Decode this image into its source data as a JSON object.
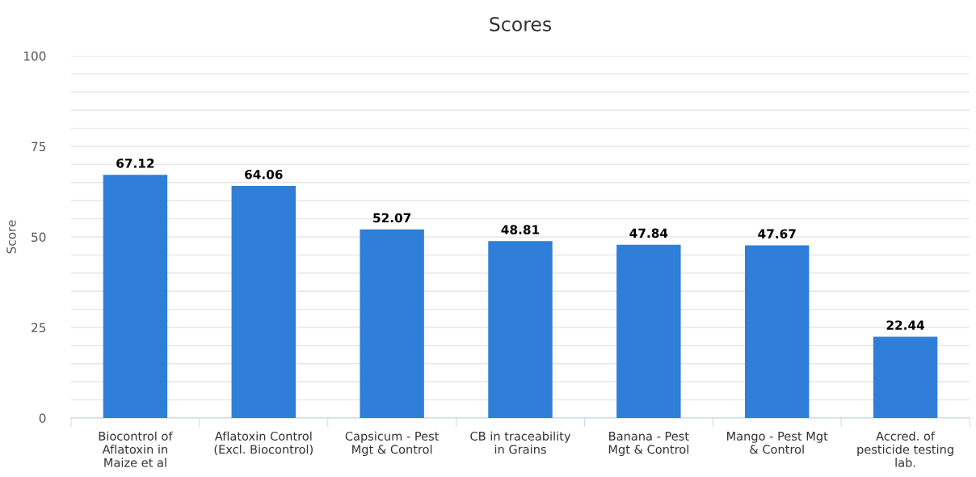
{
  "chart_data": {
    "type": "bar",
    "title": "Scores",
    "ylabel": "Score",
    "categories": [
      "Biocontrol of\nAflatoxin in\nMaize et al",
      "Aflatoxin Control\n(Excl. Biocontrol)",
      "Capsicum - Pest\nMgt & Control",
      "CB in traceability\nin Grains",
      "Banana - Pest\nMgt & Control",
      "Mango - Pest Mgt\n& Control",
      "Accred. of\npesticide testing\nlab."
    ],
    "values": [
      67.12,
      64.06,
      52.07,
      48.81,
      47.84,
      47.67,
      22.44
    ],
    "color": "#2f7ed8",
    "data_labels": true,
    "grid": "y",
    "ylim": [
      0,
      100
    ],
    "yticks": [
      0,
      {
        "value": 5,
        "label": null
      },
      {
        "value": 10,
        "label": null
      },
      {
        "value": 15,
        "label": null
      },
      {
        "value": 20,
        "label": null
      },
      25,
      {
        "value": 30,
        "label": null
      },
      {
        "value": 35,
        "label": null
      },
      {
        "value": 40,
        "label": null
      },
      {
        "value": 45,
        "label": null
      },
      50,
      {
        "value": 55,
        "label": null
      },
      {
        "value": 60,
        "label": null
      },
      {
        "value": 65,
        "label": null
      },
      {
        "value": 70,
        "label": null
      },
      75,
      {
        "value": 80,
        "label": null
      },
      {
        "value": 85,
        "label": null
      },
      {
        "value": 90,
        "label": null
      },
      {
        "value": 95,
        "label": null
      },
      100
    ]
  }
}
